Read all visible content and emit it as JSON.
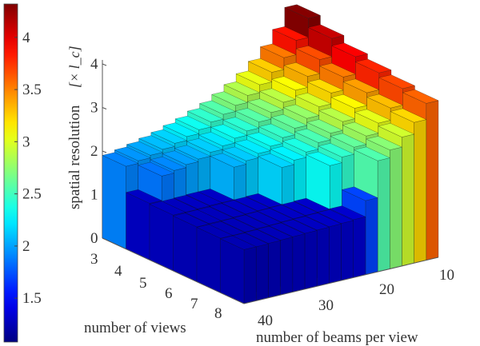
{
  "chart_data": {
    "type": "bar3d",
    "zlabel": "spatial resolution",
    "zunit": "[× l_c]",
    "xlabel": "number of views",
    "ylabel": "number of beams per view",
    "views": [
      3,
      4,
      5,
      6,
      7,
      8
    ],
    "beams": [
      10,
      12,
      14,
      16,
      18,
      20,
      22,
      24,
      26,
      28,
      30,
      32,
      34,
      36,
      38,
      40
    ],
    "values": [
      [
        4.3,
        3.86,
        3.53,
        3.26,
        3.04,
        2.86,
        2.7,
        2.56,
        2.45,
        2.34,
        2.25,
        2.16,
        2.09,
        2.02,
        1.96,
        1.9
      ],
      [
        4.09,
        3.67,
        3.35,
        3.1,
        2.89,
        2.72,
        2.57,
        2.43,
        2.33,
        2.22,
        2.14,
        2.05,
        1.99,
        1.92,
        1.86,
        1.3
      ],
      [
        3.92,
        3.52,
        3.22,
        2.97,
        2.77,
        2.61,
        2.46,
        2.33,
        2.23,
        2.13,
        2.05,
        1.3,
        1.3,
        1.29,
        1.28,
        1.28
      ],
      [
        3.8,
        3.41,
        3.12,
        2.88,
        2.68,
        2.53,
        2.38,
        2.26,
        2.16,
        1.31,
        1.3,
        1.29,
        1.28,
        1.27,
        1.27,
        1.26
      ],
      [
        3.69,
        3.31,
        3.03,
        2.8,
        2.61,
        2.45,
        2.32,
        1.32,
        1.31,
        1.3,
        1.29,
        1.28,
        1.27,
        1.26,
        1.25,
        1.25
      ],
      [
        3.6,
        3.23,
        2.96,
        2.73,
        2.55,
        1.7,
        1.33,
        1.31,
        1.3,
        1.29,
        1.28,
        1.27,
        1.26,
        1.25,
        1.24,
        1.24
      ]
    ],
    "zlim": [
      0,
      4.3
    ],
    "zticks": [
      "0",
      "1",
      "2",
      "3",
      "4"
    ],
    "xticks": [
      "3",
      "4",
      "5",
      "6",
      "7",
      "8"
    ],
    "yticks": [
      "10",
      "20",
      "30",
      "40"
    ],
    "colorbar": {
      "clim": [
        1.08,
        4.32
      ],
      "colormap": "jet",
      "ticks": [
        "1.5",
        "2",
        "2.5",
        "3",
        "3.5",
        "4"
      ],
      "placement": "left"
    }
  }
}
